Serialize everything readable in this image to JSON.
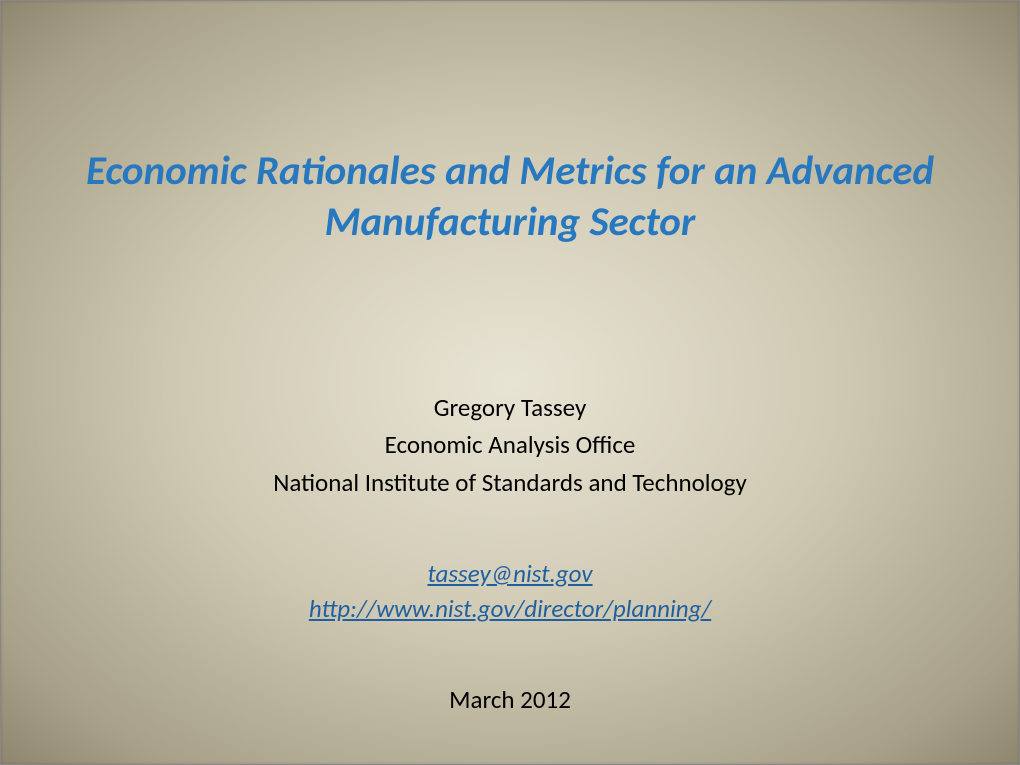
{
  "slide": {
    "title": "Economic Rationales and Metrics for an Advanced Manufacturing Sector",
    "author": {
      "name": "Gregory Tassey",
      "office": "Economic Analysis Office",
      "institution": "National Institute of Standards and Technology"
    },
    "links": {
      "email": "tassey@nist.gov",
      "url": "http://www.nist.gov/director/planning/"
    },
    "date": "March 2012",
    "colors": {
      "title_color": "#2878c0",
      "link_color": "#2060a0",
      "text_color": "#000000",
      "background_gradient_center": "#e8e4d4",
      "background_gradient_mid": "#d0cab4",
      "background_gradient_outer": "#a8a088",
      "background_gradient_edge": "#8e866e"
    },
    "typography": {
      "title_fontsize": 41,
      "body_fontsize": 25,
      "title_style": "bold italic",
      "link_style": "italic underline"
    }
  }
}
